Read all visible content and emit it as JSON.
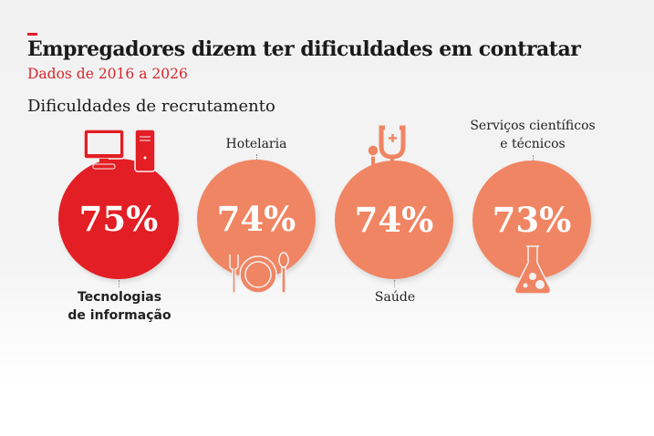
{
  "header": {
    "title": "Empregadores dizem ter dificuldades em contratar",
    "subtitle": "Dados de 2016 a 2026",
    "section": "Dificuldades de recrutamento"
  },
  "colors": {
    "accent": "#e31e24",
    "secondary": "#f08563"
  },
  "chart_data": {
    "type": "bubble",
    "title": "Dificuldades de recrutamento",
    "categories": [
      "Tecnologias de informação",
      "Hotelaria",
      "Saúde",
      "Serviços científicos e técnicos"
    ],
    "values": [
      75,
      74,
      74,
      73
    ],
    "value_labels": [
      "75%",
      "74%",
      "74%",
      "73%"
    ],
    "icons": [
      "computer-icon",
      "plate-cutlery-icon",
      "stethoscope-icon",
      "flask-icon"
    ],
    "highlight": "Tecnologias de informação"
  },
  "labels": {
    "c0": [
      "Tecnologias",
      "de informação"
    ],
    "c1": "Hotelaria",
    "c2": "Saúde",
    "c3": [
      "Serviços científicos",
      "e técnicos"
    ]
  }
}
